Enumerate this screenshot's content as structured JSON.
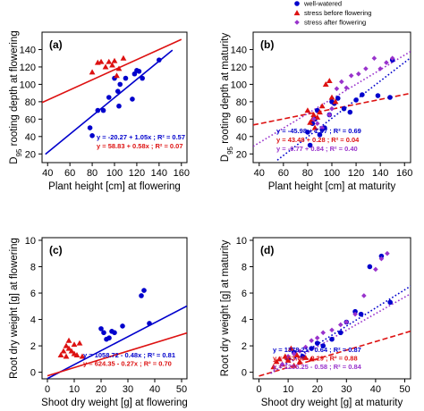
{
  "colors": {
    "well": "#0000cc",
    "stress_before": "#dd1111",
    "stress_after": "#9933cc"
  },
  "legend": {
    "entries": [
      {
        "label": "well-watered",
        "series": "well",
        "marker": "circle"
      },
      {
        "label": "stress before flowering",
        "series": "stress_before",
        "marker": "triangle"
      },
      {
        "label": "stress after flowering",
        "series": "stress_after",
        "marker": "diamond"
      }
    ],
    "placement": "top-right"
  },
  "chart_data": [
    {
      "panel": "(a)",
      "type": "scatter",
      "xlabel": "Plant height [cm] at flowering",
      "ylabel": [
        "D",
        "95",
        " rooting depth at flowering"
      ],
      "xlim": [
        35,
        165
      ],
      "ylim": [
        10,
        160
      ],
      "xticks": [
        40,
        60,
        80,
        100,
        120,
        140,
        160
      ],
      "yticks": [
        20,
        40,
        60,
        80,
        100,
        120,
        140
      ],
      "series": [
        {
          "key": "well",
          "marker": "circle",
          "points": [
            [
              78,
              50
            ],
            [
              80,
              41
            ],
            [
              85,
              70
            ],
            [
              90,
              70
            ],
            [
              95,
              85
            ],
            [
              100,
              107
            ],
            [
              105,
              100
            ],
            [
              103,
              92
            ],
            [
              104,
              75
            ],
            [
              110,
              107
            ],
            [
              116,
              83
            ],
            [
              118,
              112
            ],
            [
              120,
              116
            ],
            [
              122,
              115
            ],
            [
              125,
              107
            ],
            [
              140,
              128
            ]
          ]
        },
        {
          "key": "stress_before",
          "marker": "triangle",
          "points": [
            [
              80,
              114
            ],
            [
              85,
              125
            ],
            [
              88,
              126
            ],
            [
              92,
              120
            ],
            [
              95,
              126
            ],
            [
              98,
              122
            ],
            [
              100,
              127
            ],
            [
              102,
              110
            ],
            [
              104,
              118
            ],
            [
              108,
              130
            ]
          ]
        }
      ],
      "fits": [
        {
          "key": "well",
          "intercept": -20.27,
          "slope": 1.05,
          "x_range": [
            38,
            152
          ],
          "style": "solid"
        },
        {
          "key": "stress_before",
          "intercept": 58.83,
          "slope": 0.58,
          "x_range": [
            35,
            160
          ],
          "style": "solid"
        }
      ],
      "equations": [
        {
          "key": "well",
          "text": "y = -20.27 + 1.05x ;   R² = 0.57"
        },
        {
          "key": "stress_before",
          "text": "y = 58.83 + 0.58x ;   R² = 0.07"
        }
      ]
    },
    {
      "panel": "(b)",
      "type": "scatter",
      "xlabel": "Plant height [cm] at maturity",
      "ylabel": [
        "D",
        "95",
        " rooting depth at maturity"
      ],
      "xlim": [
        35,
        165
      ],
      "ylim": [
        10,
        160
      ],
      "xticks": [
        40,
        60,
        80,
        100,
        120,
        140,
        160
      ],
      "yticks": [
        20,
        40,
        60,
        80,
        100,
        120,
        140
      ],
      "series": [
        {
          "key": "well",
          "marker": "circle",
          "points": [
            [
              80,
              45
            ],
            [
              82,
              30
            ],
            [
              84,
              55
            ],
            [
              86,
              60
            ],
            [
              88,
              70
            ],
            [
              90,
              42
            ],
            [
              92,
              48
            ],
            [
              94,
              50
            ],
            [
              98,
              65
            ],
            [
              100,
              80
            ],
            [
              102,
              78
            ],
            [
              105,
              84
            ],
            [
              110,
              72
            ],
            [
              115,
              68
            ],
            [
              120,
              82
            ],
            [
              125,
              88
            ],
            [
              138,
              87
            ],
            [
              148,
              85
            ],
            [
              150,
              128
            ]
          ]
        },
        {
          "key": "stress_before",
          "marker": "triangle",
          "points": [
            [
              80,
              70
            ],
            [
              82,
              56
            ],
            [
              84,
              60
            ],
            [
              85,
              65
            ],
            [
              86,
              50
            ],
            [
              88,
              62
            ],
            [
              90,
              68
            ],
            [
              92,
              75
            ],
            [
              95,
              100
            ],
            [
              98,
              104
            ],
            [
              100,
              85
            ],
            [
              103,
              80
            ]
          ]
        },
        {
          "key": "stress_after",
          "marker": "diamond",
          "points": [
            [
              85,
              60
            ],
            [
              88,
              55
            ],
            [
              92,
              50
            ],
            [
              98,
              65
            ],
            [
              100,
              72
            ],
            [
              104,
              95
            ],
            [
              108,
              103
            ],
            [
              112,
              96
            ],
            [
              116,
              110
            ],
            [
              122,
              112
            ],
            [
              128,
              118
            ],
            [
              135,
              130
            ],
            [
              140,
              118
            ],
            [
              145,
              125
            ],
            [
              150,
              130
            ]
          ]
        }
      ],
      "fits": [
        {
          "key": "well",
          "intercept": -45.98,
          "slope": 1.07,
          "x_range": [
            55,
            165
          ],
          "style": "dotted"
        },
        {
          "key": "stress_before",
          "intercept": 43.48,
          "slope": 0.28,
          "x_range": [
            35,
            165
          ],
          "style": "dashed"
        },
        {
          "key": "stress_after",
          "intercept": -0.77,
          "slope": 0.84,
          "x_range": [
            35,
            165
          ],
          "style": "dotted"
        }
      ],
      "equations": [
        {
          "key": "well",
          "text": "y = -45.98 + 1.07 ;   R² = 0.69"
        },
        {
          "key": "stress_before",
          "text": "y = 43.48 + 0.28 ;   R² = 0.04"
        },
        {
          "key": "stress_after",
          "text": "y = -0.77 + 0.84 ;   R² = 0.40"
        }
      ]
    },
    {
      "panel": "(c)",
      "type": "scatter",
      "xlabel": "Shoot dry weight [g] at flowering",
      "ylabel": [
        "Root dry weight [g] at flowering"
      ],
      "xlim": [
        -2,
        52
      ],
      "ylim": [
        -0.5,
        10.2
      ],
      "xticks": [
        0,
        10,
        20,
        30,
        40,
        50
      ],
      "yticks": [
        0,
        2,
        4,
        6,
        8,
        10
      ],
      "series": [
        {
          "key": "well",
          "marker": "circle",
          "points": [
            [
              20,
              3.3
            ],
            [
              21,
              3.0
            ],
            [
              22,
              2.5
            ],
            [
              23,
              2.6
            ],
            [
              24,
              3.1
            ],
            [
              25,
              3.0
            ],
            [
              28,
              3.5
            ],
            [
              35,
              5.8
            ],
            [
              36,
              6.2
            ],
            [
              38,
              3.7
            ]
          ]
        },
        {
          "key": "stress_before",
          "marker": "triangle",
          "points": [
            [
              5,
              1.3
            ],
            [
              6,
              1.6
            ],
            [
              7,
              2.0
            ],
            [
              7,
              1.2
            ],
            [
              8,
              2.4
            ],
            [
              8,
              1.8
            ],
            [
              9,
              1.6
            ],
            [
              10,
              1.4
            ],
            [
              10,
              2.1
            ],
            [
              11,
              1.3
            ],
            [
              12,
              2.2
            ],
            [
              13,
              1.2
            ]
          ]
        }
      ],
      "fits": [
        {
          "key": "well",
          "intercept": -0.48,
          "slope": 0.1058,
          "x_range": [
            0,
            52
          ],
          "style": "solid"
        },
        {
          "key": "stress_before",
          "intercept": -0.27,
          "slope": 0.0624,
          "x_range": [
            0,
            52
          ],
          "style": "solid"
        }
      ],
      "equations": [
        {
          "key": "well",
          "text": "y = 1058.72 - 0.48x ;   R² = 0.81"
        },
        {
          "key": "stress_before",
          "text": "y = 624.35 - 0.27x ;   R² = 0.70"
        }
      ]
    },
    {
      "panel": "(d)",
      "type": "scatter",
      "xlabel": "Shoot dry weight [g] at maturity",
      "ylabel": [
        "Root dry weight [g] at maturity"
      ],
      "xlim": [
        -2,
        52
      ],
      "ylim": [
        -0.5,
        10.2
      ],
      "xticks": [
        0,
        10,
        20,
        30,
        40,
        50
      ],
      "yticks": [
        0,
        2,
        4,
        6,
        8,
        10
      ],
      "series": [
        {
          "key": "well",
          "marker": "circle",
          "points": [
            [
              10,
              1.0
            ],
            [
              12,
              1.5
            ],
            [
              15,
              1.2
            ],
            [
              18,
              1.8
            ],
            [
              20,
              2.2
            ],
            [
              22,
              2.0
            ],
            [
              25,
              2.5
            ],
            [
              28,
              3.0
            ],
            [
              30,
              3.8
            ],
            [
              33,
              4.6
            ],
            [
              35,
              4.4
            ],
            [
              38,
              8.0
            ],
            [
              42,
              8.8
            ],
            [
              45,
              5.3
            ]
          ]
        },
        {
          "key": "stress_before",
          "marker": "triangle",
          "points": [
            [
              5,
              0.4
            ],
            [
              6,
              0.8
            ],
            [
              7,
              1.0
            ],
            [
              8,
              0.6
            ],
            [
              9,
              1.2
            ],
            [
              10,
              0.9
            ],
            [
              11,
              1.8
            ],
            [
              12,
              0.5
            ],
            [
              13,
              1.3
            ],
            [
              14,
              0.8
            ],
            [
              16,
              1.1
            ],
            [
              18,
              1.0
            ]
          ]
        },
        {
          "key": "stress_after",
          "marker": "diamond",
          "points": [
            [
              8,
              0.6
            ],
            [
              10,
              1.2
            ],
            [
              12,
              1.4
            ],
            [
              14,
              1.6
            ],
            [
              16,
              1.9
            ],
            [
              18,
              2.4
            ],
            [
              20,
              2.6
            ],
            [
              22,
              3.0
            ],
            [
              25,
              3.2
            ],
            [
              28,
              3.6
            ],
            [
              30,
              3.8
            ],
            [
              33,
              4.4
            ],
            [
              36,
              5.8
            ],
            [
              40,
              7.8
            ],
            [
              42,
              8.6
            ],
            [
              44,
              9.0
            ]
          ]
        }
      ],
      "fits": [
        {
          "key": "well",
          "intercept": -0.64,
          "slope": 0.1378,
          "x_range": [
            4,
            52
          ],
          "style": "dotted"
        },
        {
          "key": "stress_before",
          "intercept": -0.29,
          "slope": 0.0654,
          "x_range": [
            0,
            52
          ],
          "style": "dashed"
        },
        {
          "key": "stress_after",
          "intercept": -0.58,
          "slope": 0.1255,
          "x_range": [
            4,
            52
          ],
          "style": "dotted"
        }
      ],
      "equations": [
        {
          "key": "well",
          "text": "y = 1378.21 - 0.64 ;   R² = 0.87"
        },
        {
          "key": "stress_before",
          "text": "y = 653.66 - 0.29 ;   R² = 0.88"
        },
        {
          "key": "stress_after",
          "text": "y = 1255.25 - 0.58 ;   R² = 0.84"
        }
      ]
    }
  ]
}
